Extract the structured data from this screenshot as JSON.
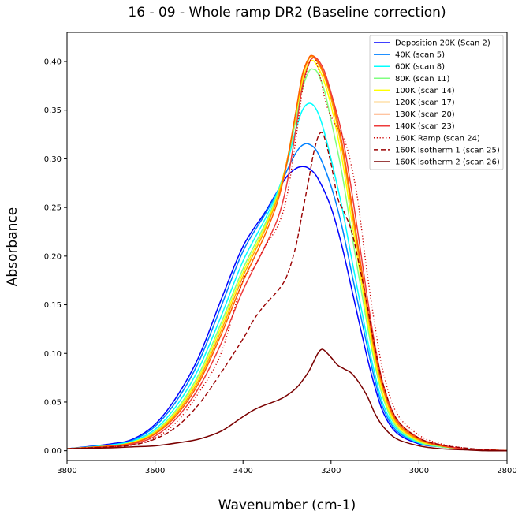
{
  "chart_data": {
    "type": "line",
    "title": "16 - 09 - Whole ramp DR2 (Baseline correction)",
    "xlabel": "Wavenumber (cm-1)",
    "ylabel": "Absorbance",
    "xlim": [
      3800,
      2800
    ],
    "x_reversed": true,
    "ylim": [
      -0.01,
      0.43
    ],
    "x_ticks": [
      3800,
      3600,
      3400,
      3200,
      3000,
      2800
    ],
    "y_ticks": [
      0.0,
      0.05,
      0.1,
      0.15,
      0.2,
      0.25,
      0.3,
      0.35,
      0.4
    ],
    "x_tick_labels": [
      "3800",
      "3600",
      "3400",
      "3200",
      "3000",
      "2800"
    ],
    "y_tick_labels": [
      "0.00",
      "0.05",
      "0.10",
      "0.15",
      "0.20",
      "0.25",
      "0.30",
      "0.35",
      "0.40"
    ],
    "grid": false,
    "legend_position": "top-right",
    "series": [
      {
        "name": "Deposition 20K (Scan 2)",
        "color": "#0000ff",
        "style": "solid",
        "x": [
          3800,
          3700,
          3650,
          3600,
          3550,
          3500,
          3450,
          3400,
          3350,
          3320,
          3300,
          3280,
          3265,
          3250,
          3230,
          3200,
          3175,
          3150,
          3120,
          3100,
          3080,
          3050,
          3000,
          2950,
          2900,
          2850,
          2800
        ],
        "y": [
          0.002,
          0.007,
          0.012,
          0.027,
          0.056,
          0.097,
          0.155,
          0.21,
          0.245,
          0.268,
          0.282,
          0.29,
          0.292,
          0.29,
          0.28,
          0.25,
          0.21,
          0.16,
          0.1,
          0.065,
          0.038,
          0.018,
          0.007,
          0.004,
          0.002,
          0.001,
          0.0
        ]
      },
      {
        "name": "40K (scan 5)",
        "color": "#0080ff",
        "style": "solid",
        "x": [
          3800,
          3700,
          3650,
          3600,
          3550,
          3500,
          3450,
          3400,
          3350,
          3320,
          3300,
          3280,
          3265,
          3250,
          3230,
          3200,
          3175,
          3150,
          3120,
          3100,
          3080,
          3050,
          3000,
          2950,
          2900,
          2850,
          2800
        ],
        "y": [
          0.002,
          0.006,
          0.011,
          0.025,
          0.052,
          0.092,
          0.148,
          0.205,
          0.243,
          0.268,
          0.288,
          0.306,
          0.314,
          0.315,
          0.306,
          0.272,
          0.23,
          0.176,
          0.112,
          0.072,
          0.042,
          0.02,
          0.008,
          0.004,
          0.002,
          0.001,
          0.0
        ]
      },
      {
        "name": "60K (scan 8)",
        "color": "#00ffff",
        "style": "solid",
        "x": [
          3800,
          3700,
          3650,
          3600,
          3550,
          3500,
          3450,
          3400,
          3350,
          3320,
          3300,
          3280,
          3265,
          3250,
          3235,
          3220,
          3200,
          3175,
          3150,
          3120,
          3100,
          3080,
          3050,
          3000,
          2950,
          2900,
          2850,
          2800
        ],
        "y": [
          0.002,
          0.006,
          0.01,
          0.022,
          0.047,
          0.085,
          0.138,
          0.195,
          0.238,
          0.268,
          0.295,
          0.33,
          0.35,
          0.357,
          0.352,
          0.335,
          0.3,
          0.25,
          0.19,
          0.12,
          0.078,
          0.046,
          0.022,
          0.008,
          0.004,
          0.002,
          0.001,
          0.0
        ]
      },
      {
        "name": "80K (scan 11)",
        "color": "#80ff80",
        "style": "solid",
        "x": [
          3800,
          3700,
          3650,
          3600,
          3550,
          3500,
          3450,
          3400,
          3350,
          3320,
          3300,
          3280,
          3265,
          3250,
          3240,
          3230,
          3215,
          3200,
          3175,
          3150,
          3120,
          3100,
          3080,
          3050,
          3000,
          2950,
          2900,
          2850,
          2800
        ],
        "y": [
          0.002,
          0.005,
          0.009,
          0.02,
          0.043,
          0.079,
          0.131,
          0.187,
          0.233,
          0.266,
          0.297,
          0.34,
          0.372,
          0.39,
          0.392,
          0.388,
          0.37,
          0.34,
          0.285,
          0.215,
          0.135,
          0.088,
          0.052,
          0.024,
          0.009,
          0.004,
          0.002,
          0.001,
          0.0
        ]
      },
      {
        "name": "100K (scan 14)",
        "color": "#ffff00",
        "style": "solid",
        "x": [
          3800,
          3700,
          3650,
          3600,
          3550,
          3500,
          3450,
          3400,
          3350,
          3320,
          3300,
          3280,
          3265,
          3250,
          3242,
          3235,
          3220,
          3200,
          3175,
          3150,
          3120,
          3100,
          3080,
          3050,
          3000,
          2950,
          2900,
          2850,
          2800
        ],
        "y": [
          0.002,
          0.005,
          0.009,
          0.019,
          0.041,
          0.076,
          0.127,
          0.183,
          0.23,
          0.264,
          0.298,
          0.345,
          0.38,
          0.399,
          0.401,
          0.398,
          0.385,
          0.355,
          0.3,
          0.228,
          0.142,
          0.092,
          0.055,
          0.026,
          0.01,
          0.005,
          0.002,
          0.001,
          0.0
        ]
      },
      {
        "name": "120K (scan 17)",
        "color": "#ffa500",
        "style": "solid",
        "x": [
          3800,
          3700,
          3650,
          3600,
          3550,
          3500,
          3450,
          3400,
          3350,
          3320,
          3300,
          3280,
          3265,
          3250,
          3243,
          3235,
          3220,
          3200,
          3175,
          3150,
          3120,
          3100,
          3080,
          3050,
          3000,
          2950,
          2900,
          2850,
          2800
        ],
        "y": [
          0.002,
          0.005,
          0.008,
          0.018,
          0.039,
          0.073,
          0.123,
          0.179,
          0.227,
          0.262,
          0.298,
          0.348,
          0.385,
          0.403,
          0.405,
          0.402,
          0.39,
          0.362,
          0.31,
          0.238,
          0.15,
          0.098,
          0.06,
          0.028,
          0.011,
          0.005,
          0.002,
          0.001,
          0.0
        ]
      },
      {
        "name": "130K (scan 20)",
        "color": "#ff6000",
        "style": "solid",
        "x": [
          3800,
          3700,
          3650,
          3600,
          3550,
          3500,
          3450,
          3400,
          3350,
          3320,
          3300,
          3280,
          3265,
          3250,
          3242,
          3235,
          3220,
          3200,
          3175,
          3150,
          3120,
          3100,
          3080,
          3050,
          3000,
          2950,
          2900,
          2850,
          2800
        ],
        "y": [
          0.002,
          0.005,
          0.008,
          0.017,
          0.037,
          0.07,
          0.119,
          0.174,
          0.222,
          0.258,
          0.296,
          0.348,
          0.387,
          0.404,
          0.406,
          0.403,
          0.392,
          0.366,
          0.316,
          0.245,
          0.155,
          0.102,
          0.063,
          0.03,
          0.012,
          0.005,
          0.002,
          0.001,
          0.0
        ]
      },
      {
        "name": "140K (scan 23)",
        "color": "#ee3b3b",
        "style": "solid",
        "x": [
          3800,
          3700,
          3650,
          3600,
          3550,
          3500,
          3450,
          3400,
          3350,
          3320,
          3300,
          3280,
          3265,
          3250,
          3240,
          3230,
          3215,
          3200,
          3175,
          3150,
          3120,
          3100,
          3080,
          3050,
          3000,
          2950,
          2900,
          2850,
          2800
        ],
        "y": [
          0.002,
          0.004,
          0.007,
          0.015,
          0.034,
          0.065,
          0.11,
          0.165,
          0.21,
          0.24,
          0.275,
          0.33,
          0.375,
          0.398,
          0.404,
          0.402,
          0.39,
          0.368,
          0.325,
          0.258,
          0.165,
          0.108,
          0.066,
          0.032,
          0.013,
          0.006,
          0.002,
          0.001,
          0.0
        ]
      },
      {
        "name": "160K Ramp (scan 24)",
        "color": "#cc0000",
        "style": "dotted",
        "x": [
          3800,
          3700,
          3650,
          3600,
          3550,
          3500,
          3450,
          3400,
          3375,
          3350,
          3320,
          3300,
          3280,
          3265,
          3250,
          3240,
          3235,
          3225,
          3210,
          3190,
          3175,
          3160,
          3140,
          3120,
          3100,
          3080,
          3050,
          3000,
          2950,
          2900,
          2850,
          2800
        ],
        "y": [
          0.002,
          0.004,
          0.006,
          0.013,
          0.03,
          0.06,
          0.1,
          0.175,
          0.188,
          0.21,
          0.232,
          0.262,
          0.32,
          0.37,
          0.398,
          0.404,
          0.402,
          0.385,
          0.355,
          0.335,
          0.325,
          0.305,
          0.26,
          0.19,
          0.128,
          0.078,
          0.038,
          0.016,
          0.007,
          0.003,
          0.001,
          0.0
        ]
      },
      {
        "name": "160K Isotherm 1 (scan 25)",
        "color": "#990000",
        "style": "dashed",
        "x": [
          3800,
          3700,
          3650,
          3600,
          3550,
          3500,
          3450,
          3400,
          3375,
          3350,
          3320,
          3300,
          3280,
          3265,
          3250,
          3240,
          3230,
          3222,
          3215,
          3200,
          3185,
          3170,
          3150,
          3120,
          3100,
          3080,
          3050,
          3000,
          2950,
          2900,
          2850,
          2800
        ],
        "y": [
          0.002,
          0.004,
          0.006,
          0.012,
          0.025,
          0.048,
          0.08,
          0.115,
          0.135,
          0.15,
          0.165,
          0.18,
          0.21,
          0.245,
          0.28,
          0.305,
          0.322,
          0.327,
          0.322,
          0.295,
          0.26,
          0.245,
          0.22,
          0.155,
          0.105,
          0.066,
          0.032,
          0.013,
          0.006,
          0.003,
          0.001,
          0.0
        ]
      },
      {
        "name": "160K Isotherm 2 (scan 26)",
        "color": "#7a0000",
        "style": "solid",
        "x": [
          3800,
          3700,
          3650,
          3600,
          3550,
          3500,
          3450,
          3400,
          3375,
          3350,
          3320,
          3300,
          3280,
          3265,
          3250,
          3240,
          3230,
          3222,
          3215,
          3200,
          3185,
          3170,
          3150,
          3120,
          3100,
          3080,
          3050,
          3000,
          2950,
          2900,
          2850,
          2800
        ],
        "y": [
          0.002,
          0.003,
          0.004,
          0.005,
          0.008,
          0.012,
          0.02,
          0.035,
          0.042,
          0.047,
          0.052,
          0.057,
          0.064,
          0.072,
          0.082,
          0.091,
          0.1,
          0.104,
          0.103,
          0.096,
          0.088,
          0.084,
          0.078,
          0.058,
          0.038,
          0.024,
          0.012,
          0.005,
          0.002,
          0.001,
          0.0,
          0.0
        ]
      }
    ]
  }
}
